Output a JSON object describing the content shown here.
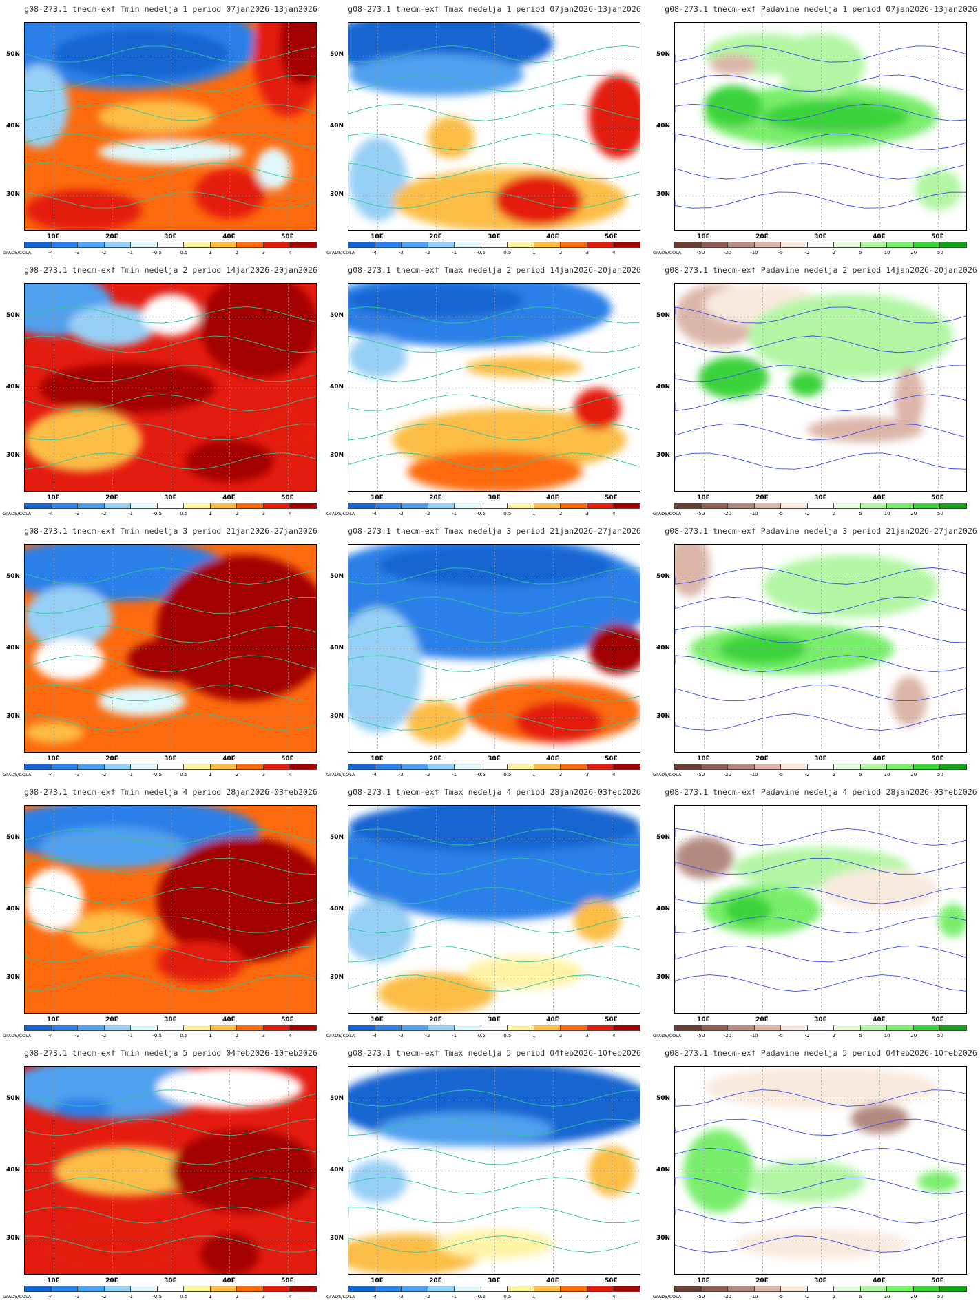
{
  "credit": "GrADS/COLA",
  "lat_labels": [
    "50N",
    "40N",
    "30N"
  ],
  "lon_labels": [
    "10E",
    "20E",
    "30E",
    "40E",
    "50E"
  ],
  "colorbars": {
    "temp": {
      "labels": [
        "-4",
        "-3",
        "-2",
        "-1",
        "-0.5",
        "0.5",
        "1",
        "2",
        "3",
        "4"
      ],
      "colors": [
        "#1565d1",
        "#2c80e8",
        "#4fa0ee",
        "#96cff5",
        "#e0f8fb",
        "#ffffff",
        "#fff3a6",
        "#fbbd45",
        "#fd6a0d",
        "#e41b0f",
        "#a30000"
      ]
    },
    "precip": {
      "labels": [
        "-50",
        "-20",
        "-10",
        "-5",
        "-2",
        "2",
        "5",
        "10",
        "20",
        "50"
      ],
      "colors": [
        "#6b3e33",
        "#8f5e54",
        "#b48a80",
        "#dbb6a8",
        "#f8e9de",
        "#ffffff",
        "#e4fbdc",
        "#b2f6a4",
        "#79ee6c",
        "#3ad33a",
        "#16a019"
      ]
    }
  },
  "panels": [
    {
      "title": "g08-273.1 tnecm-exf Tmin nedelja 1 period 07jan2026-13jan2026",
      "bar": "temp"
    },
    {
      "title": "g08-273.1 tnecm-exf Tmax nedelja 1 period 07jan2026-13jan2026",
      "bar": "temp"
    },
    {
      "title": "g08-273.1 tnecm-exf Padavine nedelja 1 period 07jan2026-13jan2026",
      "bar": "precip"
    },
    {
      "title": "g08-273.1 tnecm-exf Tmin nedelja 2 period 14jan2026-20jan2026",
      "bar": "temp"
    },
    {
      "title": "g08-273.1 tnecm-exf Tmax nedelja 2 period 14jan2026-20jan2026",
      "bar": "temp"
    },
    {
      "title": "g08-273.1 tnecm-exf Padavine nedelja 2 period 14jan2026-20jan2026",
      "bar": "precip"
    },
    {
      "title": "g08-273.1 tnecm-exf Tmin nedelja 3 period 21jan2026-27jan2026",
      "bar": "temp"
    },
    {
      "title": "g08-273.1 tnecm-exf Tmax nedelja 3 period 21jan2026-27jan2026",
      "bar": "temp"
    },
    {
      "title": "g08-273.1 tnecm-exf Padavine nedelja 3 period 21jan2026-27jan2026",
      "bar": "precip"
    },
    {
      "title": "g08-273.1 tnecm-exf Tmin nedelja 4 period 28jan2026-03feb2026",
      "bar": "temp"
    },
    {
      "title": "g08-273.1 tnecm-exf Tmax nedelja 4 period 28jan2026-03feb2026",
      "bar": "temp"
    },
    {
      "title": "g08-273.1 tnecm-exf Padavine nedelja 4 period 28jan2026-03feb2026",
      "bar": "precip"
    },
    {
      "title": "g08-273.1 tnecm-exf Tmin nedelja 5 period 04feb2026-10feb2026",
      "bar": "temp"
    },
    {
      "title": "g08-273.1 tnecm-exf Tmax nedelja 5 period 04feb2026-10feb2026",
      "bar": "temp"
    },
    {
      "title": "g08-273.1 tnecm-exf Padavine nedelja 5 period 04feb2026-10feb2026",
      "bar": "precip"
    }
  ]
}
